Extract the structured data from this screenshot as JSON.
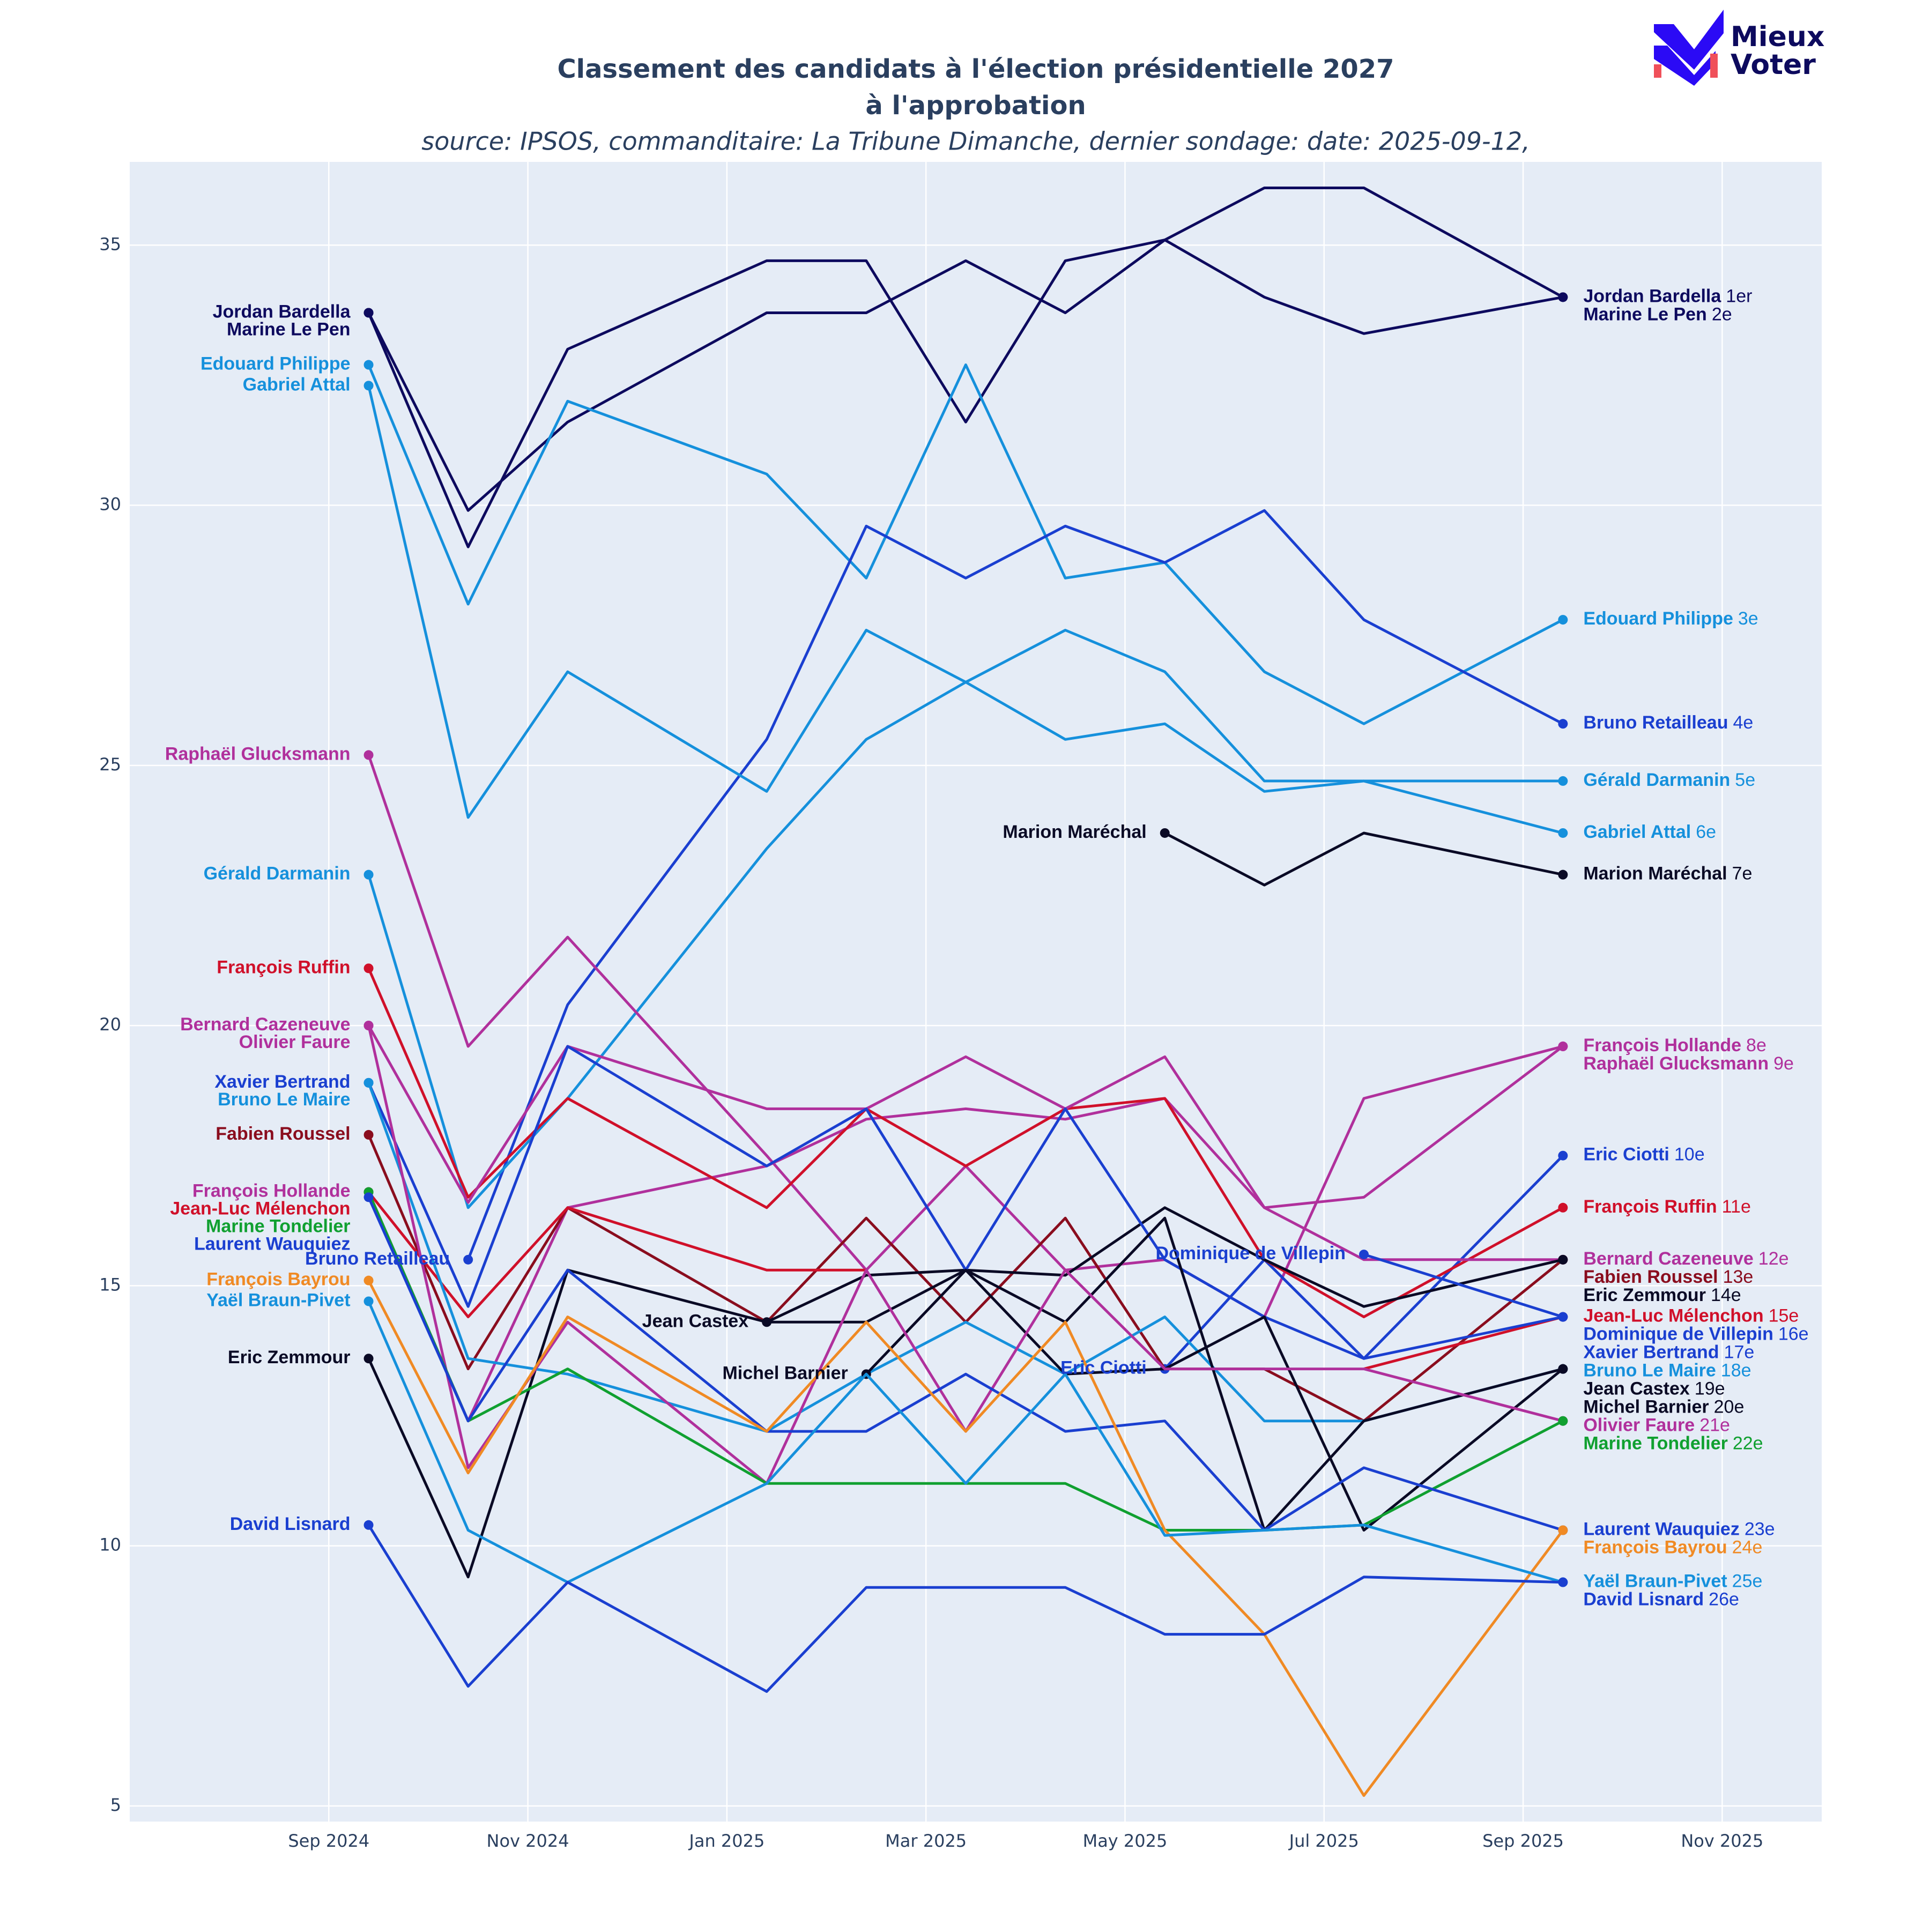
{
  "chart_data": {
    "type": "line",
    "title": [
      "Classement des candidats à l'élection présidentielle 2027",
      "à l'approbation"
    ],
    "subtitle": "source: IPSOS, commanditaire: La Tribune Dimanche, dernier sondage: date: 2025-09-12,",
    "logo": [
      "Mieux",
      "Voter"
    ],
    "x": [
      "2024-09",
      "2024-10",
      "2024-11",
      "2025-01",
      "2025-02",
      "2025-03",
      "2025-04",
      "2025-05",
      "2025-06",
      "2025-07",
      "2025-09"
    ],
    "xlim": [
      "2024-07",
      "2025-12"
    ],
    "xticks": [
      {
        "value": "2024-09",
        "label": "Sep 2024"
      },
      {
        "value": "2024-11",
        "label": "Nov 2024"
      },
      {
        "value": "2025-01",
        "label": "Jan 2025"
      },
      {
        "value": "2025-03",
        "label": "Mar 2025"
      },
      {
        "value": "2025-05",
        "label": "May 2025"
      },
      {
        "value": "2025-07",
        "label": "Jul 2025"
      },
      {
        "value": "2025-09",
        "label": "Sep 2025"
      },
      {
        "value": "2025-11",
        "label": "Nov 2025"
      }
    ],
    "ylim": [
      4.7,
      36.6
    ],
    "yticks": [
      5,
      10,
      15,
      20,
      25,
      30,
      35
    ],
    "grid": true,
    "series": [
      {
        "name": "Jordan Bardella",
        "rank": "1er",
        "color": "#0d0a5e",
        "values": [
          33.7,
          29.2,
          33.0,
          34.7,
          34.7,
          31.6,
          34.7,
          35.1,
          36.1,
          36.1,
          34.0
        ]
      },
      {
        "name": "Marine Le Pen",
        "rank": "2e",
        "color": "#0d0a5e",
        "values": [
          33.7,
          29.9,
          31.6,
          33.7,
          33.7,
          34.7,
          33.7,
          35.1,
          34.0,
          33.3,
          34.0
        ]
      },
      {
        "name": "Edouard Philippe",
        "rank": "3e",
        "color": "#1590dc",
        "values": [
          32.7,
          28.1,
          32.0,
          30.6,
          28.6,
          32.7,
          28.6,
          28.9,
          26.8,
          25.8,
          27.8
        ]
      },
      {
        "name": "Bruno Retailleau",
        "rank": "4e",
        "color": "#1a3fd0",
        "values": [
          null,
          15.5,
          20.4,
          25.5,
          29.6,
          28.6,
          29.6,
          28.9,
          29.9,
          27.8,
          25.8
        ]
      },
      {
        "name": "Gérald Darmanin",
        "rank": "5e",
        "color": "#1590dc",
        "values": [
          22.9,
          16.5,
          18.6,
          23.4,
          25.5,
          26.6,
          25.5,
          25.8,
          24.5,
          24.7,
          24.7
        ]
      },
      {
        "name": "Gabriel Attal",
        "rank": "6e",
        "color": "#1590dc",
        "values": [
          32.3,
          24.0,
          26.8,
          24.5,
          27.6,
          26.6,
          27.6,
          26.8,
          24.7,
          24.7,
          23.7
        ]
      },
      {
        "name": "Marion Maréchal",
        "rank": "7e",
        "color": "#0a0a25",
        "values": [
          null,
          null,
          null,
          null,
          null,
          null,
          null,
          23.7,
          22.7,
          23.7,
          22.9
        ]
      },
      {
        "name": "François Hollande",
        "rank": "8e",
        "color": "#b0309c",
        "values": [
          16.8,
          12.4,
          16.5,
          17.3,
          18.2,
          18.4,
          18.2,
          18.6,
          16.5,
          16.7,
          19.6
        ]
      },
      {
        "name": "Raphaël Glucksmann",
        "rank": "9e",
        "color": "#b0309c",
        "values": [
          25.2,
          19.6,
          21.7,
          17.5,
          15.3,
          17.3,
          15.3,
          15.5,
          14.4,
          18.6,
          19.6
        ]
      },
      {
        "name": "Eric Ciotti",
        "rank": "10e",
        "color": "#1a3fd0",
        "values": [
          null,
          null,
          null,
          null,
          null,
          null,
          null,
          13.4,
          15.5,
          13.6,
          17.5
        ]
      },
      {
        "name": "François Ruffin",
        "rank": "11e",
        "color": "#d0102a",
        "values": [
          21.1,
          16.7,
          18.6,
          16.5,
          18.4,
          17.3,
          18.4,
          18.6,
          15.5,
          14.4,
          16.5
        ]
      },
      {
        "name": "Bernard Cazeneuve",
        "rank": "12e",
        "color": "#b0309c",
        "values": [
          20.0,
          16.6,
          19.6,
          18.4,
          18.4,
          19.4,
          18.4,
          19.4,
          16.5,
          15.5,
          15.5
        ]
      },
      {
        "name": "Fabien Roussel",
        "rank": "13e",
        "color": "#8a0d1e",
        "values": [
          17.9,
          13.4,
          16.5,
          14.3,
          16.3,
          14.3,
          16.3,
          13.4,
          13.4,
          12.4,
          15.5
        ]
      },
      {
        "name": "Eric Zemmour",
        "rank": "14e",
        "color": "#0a0a25",
        "values": [
          13.6,
          9.4,
          15.3,
          14.3,
          15.2,
          15.3,
          15.2,
          16.5,
          15.5,
          14.6,
          15.5
        ]
      },
      {
        "name": "Jean-Luc Mélenchon",
        "rank": "15e",
        "color": "#d0102a",
        "values": [
          16.8,
          14.4,
          16.5,
          15.3,
          15.3,
          null,
          null,
          null,
          null,
          13.4,
          14.4
        ]
      },
      {
        "name": "Dominique de Villepin",
        "rank": "16e",
        "color": "#1a3fd0",
        "values": [
          null,
          null,
          null,
          null,
          null,
          null,
          null,
          null,
          null,
          15.6,
          14.4
        ]
      },
      {
        "name": "Xavier Bertrand",
        "rank": "17e",
        "color": "#1a3fd0",
        "values": [
          18.9,
          14.6,
          19.6,
          17.3,
          18.4,
          15.3,
          18.4,
          15.5,
          14.4,
          13.6,
          14.4
        ]
      },
      {
        "name": "Bruno Le Maire",
        "rank": "18e",
        "color": "#1590dc",
        "values": [
          18.9,
          13.6,
          13.3,
          12.2,
          13.3,
          14.3,
          13.3,
          14.4,
          12.4,
          12.4,
          13.4
        ]
      },
      {
        "name": "Jean Castex",
        "rank": "19e",
        "color": "#0a0a25",
        "values": [
          null,
          null,
          null,
          14.3,
          14.3,
          15.3,
          14.3,
          16.3,
          10.3,
          12.4,
          13.4
        ]
      },
      {
        "name": "Michel Barnier",
        "rank": "20e",
        "color": "#0a0a25",
        "values": [
          null,
          null,
          null,
          null,
          13.3,
          15.3,
          13.3,
          13.4,
          14.4,
          10.3,
          13.4
        ]
      },
      {
        "name": "Olivier Faure",
        "rank": "21e",
        "color": "#b0309c",
        "values": [
          20.0,
          11.5,
          14.3,
          11.2,
          15.3,
          12.2,
          15.3,
          13.4,
          13.4,
          13.4,
          12.4
        ]
      },
      {
        "name": "Marine Tondelier",
        "rank": "22e",
        "color": "#10a030",
        "values": [
          16.8,
          12.4,
          13.4,
          11.2,
          11.2,
          11.2,
          11.2,
          10.3,
          10.3,
          10.4,
          12.4
        ]
      },
      {
        "name": "Laurent Wauquiez",
        "rank": "23e",
        "color": "#1a3fd0",
        "values": [
          16.7,
          12.4,
          15.3,
          12.2,
          12.2,
          13.3,
          12.2,
          12.4,
          10.3,
          11.5,
          10.3
        ]
      },
      {
        "name": "François Bayrou",
        "rank": "24e",
        "color": "#f08a24",
        "values": [
          15.1,
          11.4,
          14.4,
          12.2,
          14.3,
          12.2,
          14.3,
          10.3,
          8.3,
          5.2,
          10.3
        ]
      },
      {
        "name": "Yaël Braun-Pivet",
        "rank": "25e",
        "color": "#1590dc",
        "values": [
          14.7,
          10.3,
          9.3,
          11.2,
          13.3,
          11.2,
          13.3,
          10.2,
          10.3,
          10.4,
          9.3
        ]
      },
      {
        "name": "David Lisnard",
        "rank": "26e",
        "color": "#1a3fd0",
        "values": [
          10.4,
          7.3,
          9.3,
          7.2,
          9.2,
          9.2,
          9.2,
          8.3,
          8.3,
          9.4,
          9.3
        ]
      }
    ]
  }
}
